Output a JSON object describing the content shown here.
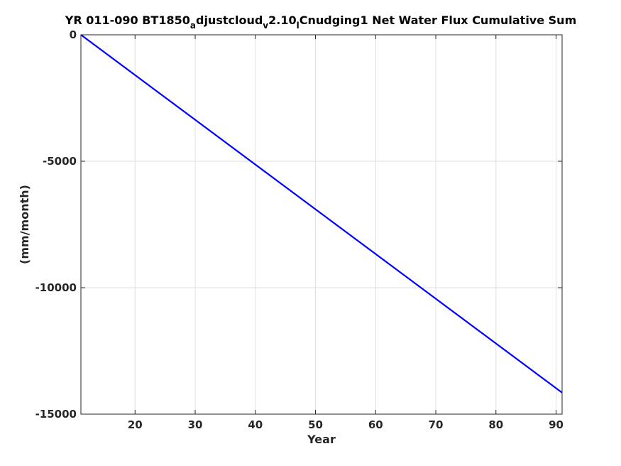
{
  "chart_data": {
    "type": "line",
    "title": {
      "part1": "YR 011-090 BT1850",
      "sub1": "a",
      "part2": "djustcloud",
      "sub2": "v",
      "part3": "2.10",
      "sub3": "l",
      "part4": "Cnudging1 Net Water Flux Cumulative Sum"
    },
    "xlabel": "Year",
    "ylabel": "(mm/month)",
    "xlim": [
      11,
      91
    ],
    "ylim": [
      -15000,
      0
    ],
    "xticks": [
      20,
      30,
      40,
      50,
      60,
      70,
      80,
      90
    ],
    "yticks": [
      0,
      -5000,
      -10000,
      -15000
    ],
    "xtick_labels": [
      "20",
      "30",
      "40",
      "50",
      "60",
      "70",
      "80",
      "90"
    ],
    "ytick_labels": [
      "0",
      "-5000",
      "-10000",
      "-15000"
    ],
    "grid": true,
    "series": [
      {
        "color": "#0000ff",
        "x": [
          11,
          91
        ],
        "y": [
          0,
          -14150
        ]
      }
    ]
  }
}
